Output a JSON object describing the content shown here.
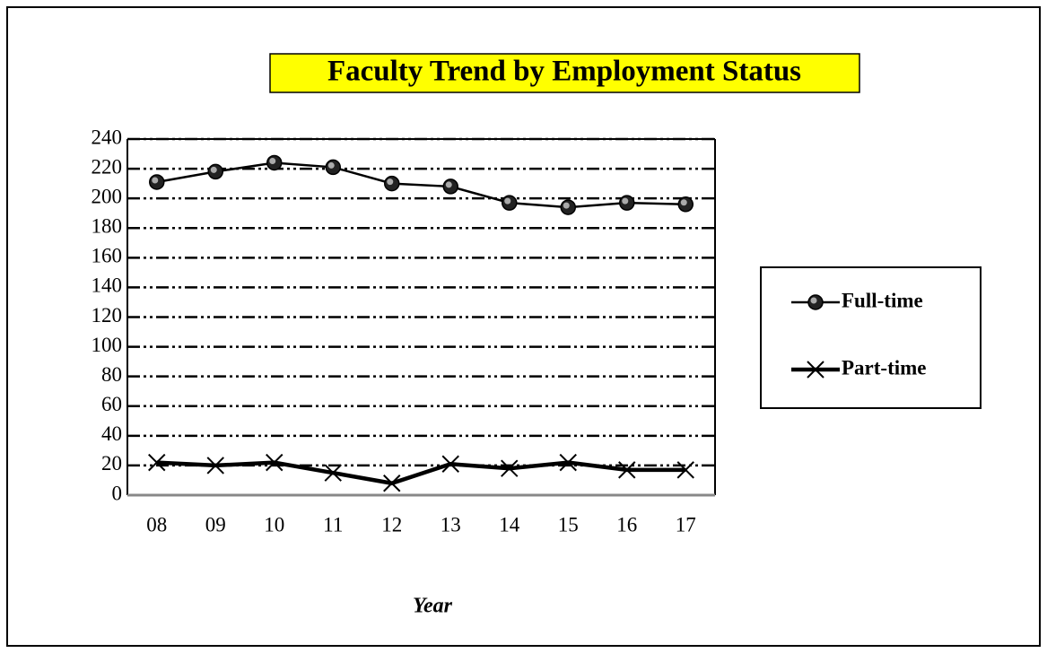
{
  "chart_data": {
    "type": "line",
    "title": "Faculty Trend by Employment Status",
    "x_label": "Year",
    "categories": [
      "08",
      "09",
      "10",
      "11",
      "12",
      "13",
      "14",
      "15",
      "16",
      "17"
    ],
    "series": [
      {
        "name": "Full-time",
        "color": "#000000",
        "marker": "circle",
        "values": [
          211,
          218,
          224,
          221,
          210,
          208,
          197,
          194,
          197,
          196
        ]
      },
      {
        "name": "Part-time",
        "color": "#000000",
        "marker": "x",
        "values": [
          22,
          20,
          22,
          15,
          8,
          21,
          18,
          22,
          17,
          17
        ]
      }
    ],
    "ylim": [
      0,
      240
    ],
    "yticks": [
      0,
      20,
      40,
      60,
      80,
      100,
      120,
      140,
      160,
      180,
      200,
      220,
      240
    ],
    "grid": true,
    "legend": "right"
  }
}
